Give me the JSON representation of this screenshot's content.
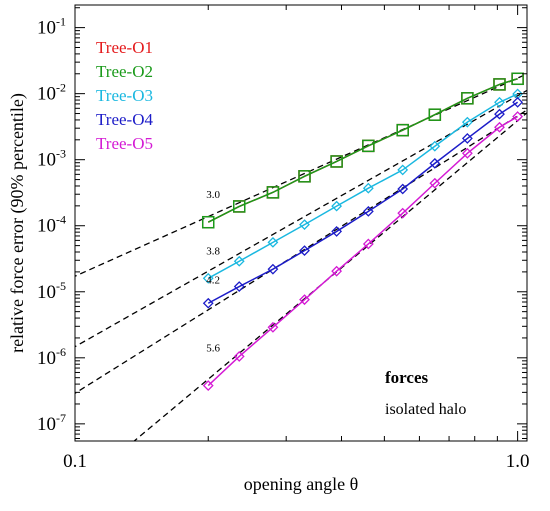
{
  "chart_data": {
    "type": "line",
    "xlabel": "opening angle  θ",
    "ylabel": "relative force error (90% percentile)",
    "x_scale": "log",
    "y_scale": "log",
    "xlim": [
      0.1,
      1.05
    ],
    "ylim": [
      5.5e-08,
      0.22
    ],
    "x_ticks": [
      {
        "value": 0.1,
        "label": "0.1"
      },
      {
        "value": 1.0,
        "label": "1.0"
      }
    ],
    "y_ticks": [
      {
        "value": 1e-07,
        "base": "10",
        "exp": "-7"
      },
      {
        "value": 1e-06,
        "base": "10",
        "exp": "-6"
      },
      {
        "value": 1e-05,
        "base": "10",
        "exp": "-5"
      },
      {
        "value": 0.0001,
        "base": "10",
        "exp": "-4"
      },
      {
        "value": 0.001,
        "base": "10",
        "exp": "-3"
      },
      {
        "value": 0.01,
        "base": "10",
        "exp": "-2"
      },
      {
        "value": 0.1,
        "base": "10",
        "exp": "-1"
      }
    ],
    "grid": false,
    "legend_position": "top-left",
    "x": [
      0.2,
      0.235,
      0.28,
      0.33,
      0.39,
      0.46,
      0.55,
      0.65,
      0.77,
      0.91,
      1.0
    ],
    "series": [
      {
        "name": "Tree-O1",
        "color": "#e41a1c",
        "marker": "square",
        "values": [
          0.000113,
          0.000196,
          0.00032,
          0.00056,
          0.00094,
          0.00162,
          0.0028,
          0.0048,
          0.0085,
          0.0138,
          0.0168
        ]
      },
      {
        "name": "Tree-O2",
        "color": "#1a9a1a",
        "marker": "square",
        "values": [
          0.000113,
          0.000196,
          0.00032,
          0.00056,
          0.00094,
          0.00162,
          0.0028,
          0.0048,
          0.0085,
          0.0138,
          0.0168
        ]
      },
      {
        "name": "Tree-O3",
        "color": "#1ab8e0",
        "marker": "diamond",
        "values": [
          1.6e-05,
          2.9e-05,
          5.6e-05,
          0.000104,
          0.000198,
          0.00037,
          0.0007,
          0.0016,
          0.0037,
          0.0074,
          0.0099
        ]
      },
      {
        "name": "Tree-O4",
        "color": "#1c1cc8",
        "marker": "diamond",
        "values": [
          6.7e-06,
          1.2e-05,
          2.2e-05,
          4.2e-05,
          8.2e-05,
          0.000165,
          0.00036,
          0.00088,
          0.0021,
          0.0049,
          0.0074
        ]
      },
      {
        "name": "Tree-O5",
        "color": "#d41ad4",
        "marker": "diamond",
        "values": [
          3.8e-07,
          1.05e-06,
          2.9e-06,
          7.6e-06,
          2.05e-05,
          5.3e-05,
          0.000155,
          0.00044,
          0.00125,
          0.0031,
          0.0045
        ]
      }
    ],
    "reference_lines": [
      {
        "slope": 3.0,
        "label": "3.0",
        "anchor": [
          1.0,
          0.0172
        ]
      },
      {
        "slope": 3.8,
        "label": "3.8",
        "anchor": [
          1.0,
          0.0093
        ]
      },
      {
        "slope": 4.2,
        "label": "4.2",
        "anchor": [
          1.0,
          0.0046
        ]
      },
      {
        "slope": 5.6,
        "label": "5.6",
        "anchor": [
          1.0,
          0.0039
        ]
      }
    ],
    "annotations": [
      {
        "text": "forces",
        "bold": true
      },
      {
        "text": "isolated halo",
        "bold": false
      }
    ]
  }
}
